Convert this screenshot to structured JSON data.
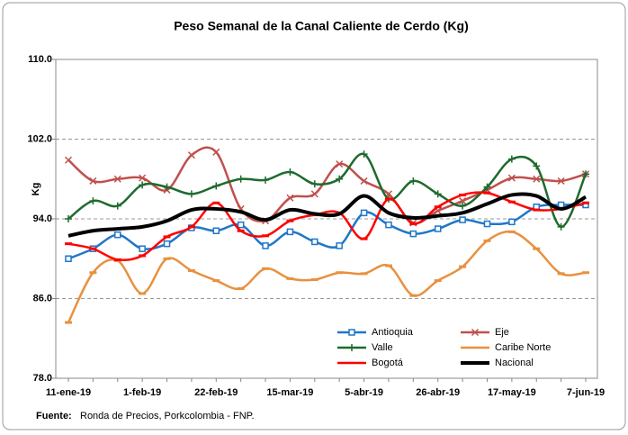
{
  "chart_data": {
    "type": "line",
    "title": "Peso Semanal de la Canal Caliente de Cerdo (Kg)",
    "y_label": "Kg",
    "source_label": "Fuente:",
    "source": "Ronda de Precios, Porkcolombia  - FNP.",
    "categories": [
      "11-ene-19",
      null,
      null,
      "1-feb-19",
      null,
      null,
      "22-feb-19",
      null,
      null,
      "15-mar-19",
      null,
      null,
      "5-abr-19",
      null,
      null,
      "26-abr-19",
      null,
      null,
      "17-may-19",
      null,
      null,
      "7-jun-19"
    ],
    "ylim": [
      78,
      110
    ],
    "yticks": [
      {
        "value": 78,
        "label": "78.0"
      },
      {
        "value": 86,
        "label": "86.0"
      },
      {
        "value": 94,
        "label": "94.0"
      },
      {
        "value": 102,
        "label": "102.0"
      },
      {
        "value": 110,
        "label": "110.0"
      }
    ],
    "grid": true,
    "legend": "lower right",
    "series": [
      {
        "name": "Antioquia",
        "color": "#1f77c9",
        "marker": "square",
        "values": [
          90.0,
          91.0,
          92.4,
          91.0,
          91.5,
          93.1,
          92.8,
          93.4,
          91.3,
          92.7,
          91.7,
          91.3,
          94.6,
          93.4,
          92.5,
          93.0,
          93.9,
          93.5,
          93.7,
          95.2,
          95.4,
          95.4
        ]
      },
      {
        "name": "Eje",
        "color": "#c0504d",
        "marker": "x",
        "values": [
          99.9,
          97.8,
          98.0,
          98.1,
          96.9,
          100.4,
          100.7,
          95.0,
          93.8,
          96.1,
          96.5,
          99.5,
          97.8,
          96.5,
          93.6,
          94.8,
          95.8,
          96.9,
          98.1,
          98.0,
          97.8,
          98.5
        ]
      },
      {
        "name": "Valle",
        "color": "#1e6b2e",
        "marker": "plus",
        "values": [
          94.0,
          95.8,
          95.3,
          97.4,
          97.2,
          96.5,
          97.3,
          98.0,
          97.9,
          98.7,
          97.5,
          98.0,
          100.5,
          96.0,
          97.8,
          96.5,
          95.3,
          97.2,
          100.0,
          99.3,
          93.2,
          98.5
        ]
      },
      {
        "name": "Caribe Norte",
        "color": "#e8913f",
        "marker": "dash",
        "values": [
          83.6,
          88.6,
          89.8,
          86.5,
          90.0,
          88.8,
          87.8,
          87.0,
          89.0,
          88.0,
          87.9,
          88.6,
          88.5,
          89.3,
          86.3,
          87.8,
          89.2,
          91.8,
          92.7,
          91.0,
          88.5,
          88.6
        ]
      },
      {
        "name": "Bogotá",
        "color": "#ff0000",
        "marker": "dash",
        "values": [
          91.5,
          91.0,
          89.9,
          90.3,
          92.2,
          93.2,
          95.6,
          92.8,
          92.3,
          93.8,
          94.4,
          94.6,
          92.0,
          96.0,
          93.5,
          95.2,
          96.4,
          96.6,
          95.7,
          94.9,
          95.0,
          95.6
        ]
      },
      {
        "name": "Nacional",
        "color": "#000000",
        "marker": "none",
        "values": [
          92.3,
          92.8,
          93.0,
          93.2,
          93.8,
          94.9,
          95.0,
          94.7,
          93.9,
          94.9,
          94.5,
          94.5,
          96.3,
          94.6,
          94.1,
          94.3,
          94.6,
          95.5,
          96.4,
          96.3,
          95.0,
          96.2
        ]
      }
    ]
  }
}
